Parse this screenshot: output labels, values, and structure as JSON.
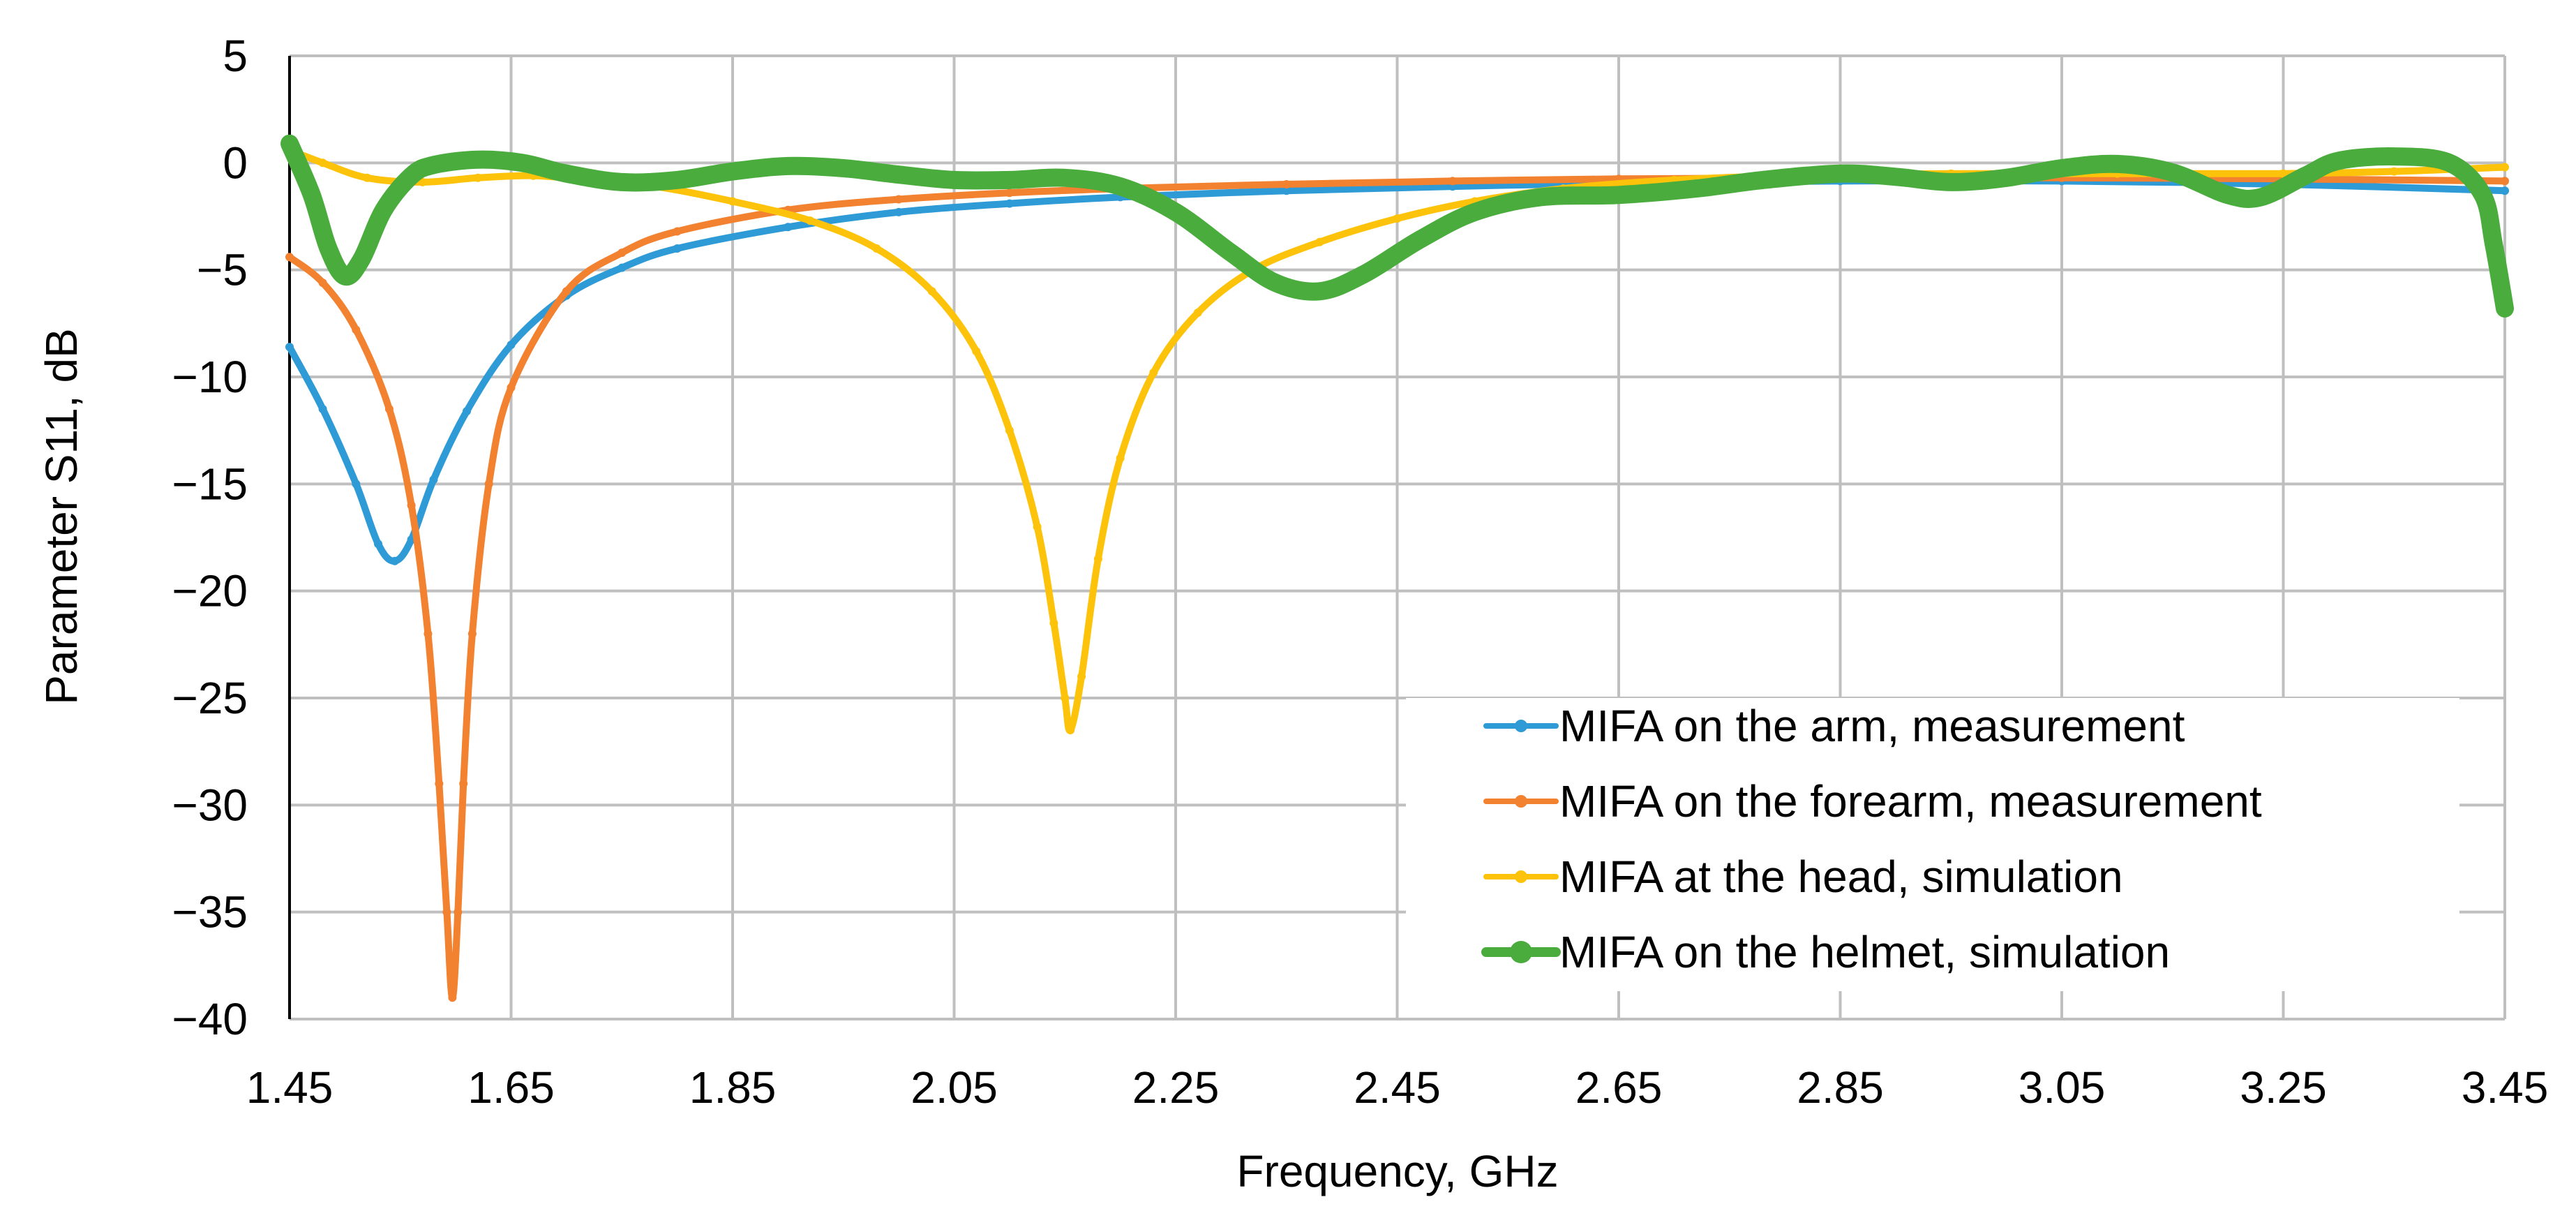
{
  "chart_data": {
    "type": "line",
    "title": "",
    "xlabel": "Frequency, GHz",
    "ylabel": "Parameter S11, dB",
    "xlim": [
      1.45,
      3.45
    ],
    "ylim": [
      -40,
      5
    ],
    "x_ticks": [
      1.45,
      1.65,
      1.85,
      2.05,
      2.25,
      2.45,
      2.65,
      2.85,
      3.05,
      3.25,
      3.45
    ],
    "x_tick_labels": [
      "1.45",
      "1.65",
      "1.85",
      "2.05",
      "2.25",
      "2.45",
      "2.65",
      "2.85",
      "3.05",
      "3.25",
      "3.45"
    ],
    "y_ticks": [
      5,
      0,
      -5,
      -10,
      -15,
      -20,
      -25,
      -30,
      -35,
      -40
    ],
    "y_tick_labels": [
      "5",
      "0",
      "−5",
      "−10",
      "−15",
      "−20",
      "−25",
      "−30",
      "−35",
      "−40"
    ],
    "grid": true,
    "legend_position": "bottom-right",
    "series": [
      {
        "name": "MIFA on the arm, measurement",
        "color": "#2e9ad6",
        "points": [
          [
            1.45,
            -8.6
          ],
          [
            1.48,
            -11.5
          ],
          [
            1.51,
            -15.0
          ],
          [
            1.53,
            -17.8
          ],
          [
            1.545,
            -18.6
          ],
          [
            1.56,
            -17.6
          ],
          [
            1.58,
            -14.8
          ],
          [
            1.61,
            -11.6
          ],
          [
            1.65,
            -8.5
          ],
          [
            1.7,
            -6.2
          ],
          [
            1.75,
            -4.9
          ],
          [
            1.8,
            -4.0
          ],
          [
            1.9,
            -3.0
          ],
          [
            2.0,
            -2.3
          ],
          [
            2.1,
            -1.9
          ],
          [
            2.2,
            -1.6
          ],
          [
            2.35,
            -1.3
          ],
          [
            2.5,
            -1.1
          ],
          [
            2.65,
            -0.95
          ],
          [
            2.85,
            -0.85
          ],
          [
            3.05,
            -0.85
          ],
          [
            3.25,
            -1.0
          ],
          [
            3.45,
            -1.3
          ]
        ]
      },
      {
        "name": "MIFA on the forearm, measurement",
        "color": "#f28130",
        "points": [
          [
            1.45,
            -4.4
          ],
          [
            1.48,
            -5.6
          ],
          [
            1.51,
            -7.8
          ],
          [
            1.54,
            -11.5
          ],
          [
            1.56,
            -16.0
          ],
          [
            1.575,
            -22.0
          ],
          [
            1.585,
            -29.0
          ],
          [
            1.592,
            -35.0
          ],
          [
            1.597,
            -39.0
          ],
          [
            1.602,
            -35.0
          ],
          [
            1.607,
            -29.0
          ],
          [
            1.615,
            -22.0
          ],
          [
            1.63,
            -15.0
          ],
          [
            1.65,
            -10.5
          ],
          [
            1.7,
            -6.0
          ],
          [
            1.75,
            -4.2
          ],
          [
            1.8,
            -3.2
          ],
          [
            1.9,
            -2.2
          ],
          [
            2.0,
            -1.7
          ],
          [
            2.1,
            -1.4
          ],
          [
            2.2,
            -1.2
          ],
          [
            2.35,
            -1.0
          ],
          [
            2.5,
            -0.85
          ],
          [
            2.65,
            -0.75
          ],
          [
            2.85,
            -0.7
          ],
          [
            3.05,
            -0.7
          ],
          [
            3.25,
            -0.75
          ],
          [
            3.45,
            -0.85
          ]
        ]
      },
      {
        "name": "MIFA at the head, simulation",
        "color": "#fdc30a",
        "points": [
          [
            1.45,
            0.6
          ],
          [
            1.48,
            0.0
          ],
          [
            1.52,
            -0.7
          ],
          [
            1.57,
            -0.9
          ],
          [
            1.62,
            -0.7
          ],
          [
            1.67,
            -0.6
          ],
          [
            1.72,
            -0.8
          ],
          [
            1.78,
            -1.1
          ],
          [
            1.85,
            -1.8
          ],
          [
            1.92,
            -2.7
          ],
          [
            1.98,
            -4.0
          ],
          [
            2.03,
            -6.0
          ],
          [
            2.07,
            -8.8
          ],
          [
            2.1,
            -12.5
          ],
          [
            2.125,
            -17.0
          ],
          [
            2.14,
            -21.5
          ],
          [
            2.15,
            -25.0
          ],
          [
            2.155,
            -26.5
          ],
          [
            2.165,
            -24.0
          ],
          [
            2.18,
            -18.5
          ],
          [
            2.2,
            -13.8
          ],
          [
            2.23,
            -9.8
          ],
          [
            2.27,
            -7.0
          ],
          [
            2.32,
            -5.0
          ],
          [
            2.38,
            -3.7
          ],
          [
            2.45,
            -2.6
          ],
          [
            2.52,
            -1.8
          ],
          [
            2.6,
            -1.2
          ],
          [
            2.7,
            -0.8
          ],
          [
            2.8,
            -0.6
          ],
          [
            2.95,
            -0.5
          ],
          [
            3.1,
            -0.5
          ],
          [
            3.25,
            -0.5
          ],
          [
            3.35,
            -0.4
          ],
          [
            3.45,
            -0.2
          ]
        ]
      },
      {
        "name": "MIFA on the helmet, simulation",
        "color": "#4aac3d",
        "points": [
          [
            1.45,
            0.9
          ],
          [
            1.47,
            -1.5
          ],
          [
            1.485,
            -4.0
          ],
          [
            1.5,
            -5.3
          ],
          [
            1.515,
            -4.5
          ],
          [
            1.535,
            -2.2
          ],
          [
            1.56,
            -0.6
          ],
          [
            1.58,
            -0.1
          ],
          [
            1.62,
            0.15
          ],
          [
            1.66,
            0.0
          ],
          [
            1.7,
            -0.5
          ],
          [
            1.75,
            -0.9
          ],
          [
            1.8,
            -0.8
          ],
          [
            1.85,
            -0.4
          ],
          [
            1.9,
            -0.15
          ],
          [
            1.95,
            -0.25
          ],
          [
            2.0,
            -0.55
          ],
          [
            2.05,
            -0.8
          ],
          [
            2.1,
            -0.8
          ],
          [
            2.15,
            -0.7
          ],
          [
            2.2,
            -1.1
          ],
          [
            2.25,
            -2.3
          ],
          [
            2.3,
            -4.2
          ],
          [
            2.34,
            -5.6
          ],
          [
            2.38,
            -6.0
          ],
          [
            2.42,
            -5.2
          ],
          [
            2.47,
            -3.6
          ],
          [
            2.52,
            -2.3
          ],
          [
            2.58,
            -1.6
          ],
          [
            2.65,
            -1.5
          ],
          [
            2.72,
            -1.2
          ],
          [
            2.78,
            -0.8
          ],
          [
            2.85,
            -0.5
          ],
          [
            2.9,
            -0.65
          ],
          [
            2.95,
            -0.9
          ],
          [
            3.0,
            -0.7
          ],
          [
            3.05,
            -0.25
          ],
          [
            3.1,
            -0.05
          ],
          [
            3.15,
            -0.45
          ],
          [
            3.2,
            -1.5
          ],
          [
            3.23,
            -1.6
          ],
          [
            3.27,
            -0.6
          ],
          [
            3.3,
            0.1
          ],
          [
            3.35,
            0.3
          ],
          [
            3.4,
            0.0
          ],
          [
            3.43,
            -1.5
          ],
          [
            3.44,
            -3.8
          ],
          [
            3.45,
            -6.8
          ]
        ]
      }
    ]
  }
}
